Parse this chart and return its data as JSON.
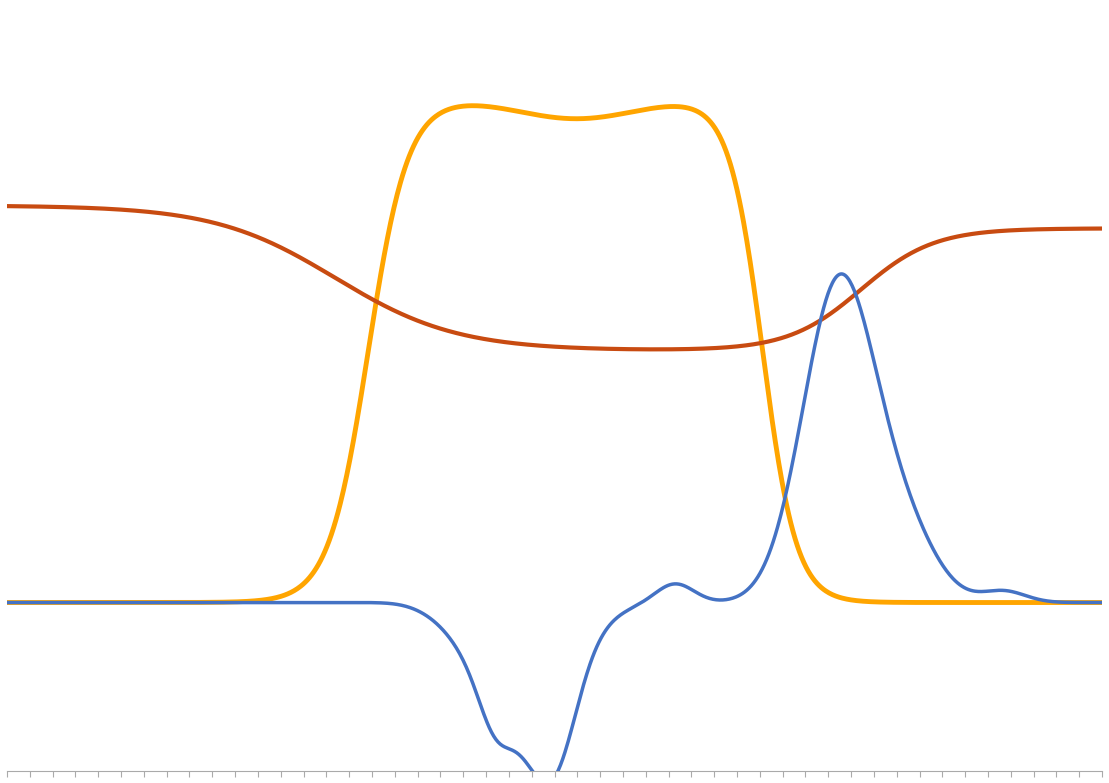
{
  "background_color": "#ffffff",
  "grid_color": "#cccccc",
  "line_orange": {
    "color": "#FFA500",
    "linewidth": 3.5
  },
  "line_red": {
    "color": "#C84B11",
    "linewidth": 3.0
  },
  "line_blue": {
    "color": "#4472C4",
    "linewidth": 2.5
  },
  "xlim": [
    0,
    100
  ],
  "ylim": [
    0,
    1
  ],
  "figsize": [
    11.09,
    7.83
  ],
  "dpi": 100
}
